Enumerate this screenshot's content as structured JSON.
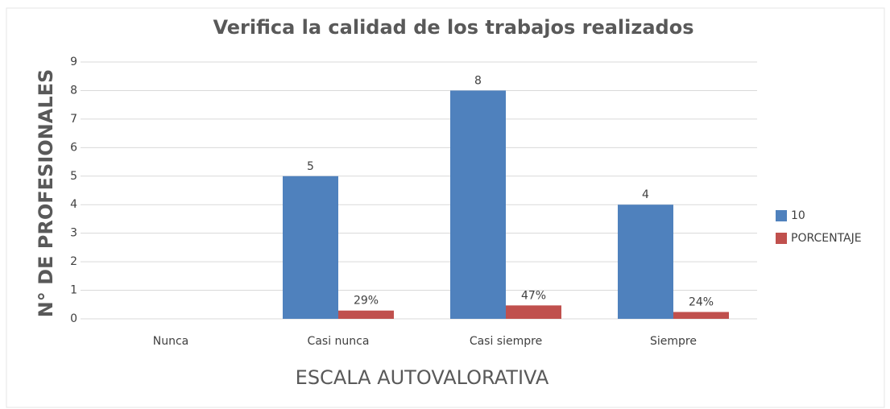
{
  "chart_data": {
    "type": "bar",
    "title": "Verifica la calidad de los trabajos realizados",
    "x_label": "ESCALA AUTOVALORATIVA",
    "y_label": "N° DE PROFESIONALES",
    "categories": [
      "Nunca",
      "Casi nunca",
      "Casi siempre",
      "Siempre"
    ],
    "series": [
      {
        "name": "10",
        "color": "#4f81bd",
        "values": [
          null,
          5,
          8,
          4
        ]
      },
      {
        "name": "PORCENTAJE",
        "color": "#c0504d",
        "values": [
          null,
          0.29,
          0.47,
          0.24
        ],
        "value_labels": [
          null,
          "29%",
          "47%",
          "24%"
        ]
      }
    ],
    "ylim": [
      0,
      9
    ],
    "yticks": [
      0,
      1,
      2,
      3,
      4,
      5,
      6,
      7,
      8,
      9
    ],
    "grid": true,
    "legend": "right"
  }
}
